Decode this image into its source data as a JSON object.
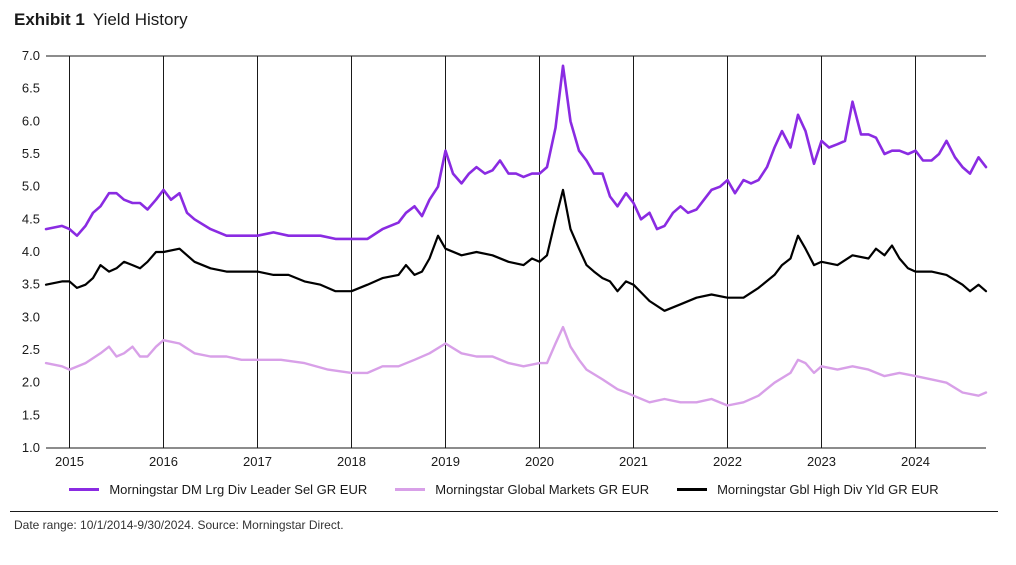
{
  "title_prefix": "Exhibit 1",
  "title_rest": "Yield History",
  "source_note": "Date range: 10/1/2014-9/30/2024. Source: Morningstar Direct.",
  "chart": {
    "type": "line",
    "background_color": "#ffffff",
    "grid_color": "#1a1a1a",
    "axis_color": "#1a1a1a",
    "y_axis": {
      "min": 1.0,
      "max": 7.0,
      "step": 0.5,
      "ticks": [
        1.0,
        1.5,
        2.0,
        2.5,
        3.0,
        3.5,
        4.0,
        4.5,
        5.0,
        5.5,
        6.0,
        6.5,
        7.0
      ],
      "label_fontsize": 13
    },
    "x_axis": {
      "min": 2014.75,
      "max": 2024.75,
      "year_lines": [
        2015,
        2016,
        2017,
        2018,
        2019,
        2020,
        2021,
        2022,
        2023,
        2024
      ],
      "label_fontsize": 13
    },
    "series": [
      {
        "name": "Morningstar DM Lrg Div Leader Sel GR EUR",
        "color": "#8a2be2",
        "line_width": 2.6,
        "points": [
          [
            2014.75,
            4.35
          ],
          [
            2014.92,
            4.4
          ],
          [
            2015.0,
            4.35
          ],
          [
            2015.08,
            4.25
          ],
          [
            2015.17,
            4.4
          ],
          [
            2015.25,
            4.6
          ],
          [
            2015.33,
            4.7
          ],
          [
            2015.42,
            4.9
          ],
          [
            2015.5,
            4.9
          ],
          [
            2015.58,
            4.8
          ],
          [
            2015.67,
            4.75
          ],
          [
            2015.75,
            4.75
          ],
          [
            2015.83,
            4.65
          ],
          [
            2015.92,
            4.8
          ],
          [
            2016.0,
            4.95
          ],
          [
            2016.08,
            4.8
          ],
          [
            2016.17,
            4.9
          ],
          [
            2016.25,
            4.6
          ],
          [
            2016.33,
            4.5
          ],
          [
            2016.5,
            4.35
          ],
          [
            2016.67,
            4.25
          ],
          [
            2016.83,
            4.25
          ],
          [
            2017.0,
            4.25
          ],
          [
            2017.17,
            4.3
          ],
          [
            2017.33,
            4.25
          ],
          [
            2017.5,
            4.25
          ],
          [
            2017.67,
            4.25
          ],
          [
            2017.83,
            4.2
          ],
          [
            2018.0,
            4.2
          ],
          [
            2018.17,
            4.2
          ],
          [
            2018.33,
            4.35
          ],
          [
            2018.5,
            4.45
          ],
          [
            2018.58,
            4.6
          ],
          [
            2018.67,
            4.7
          ],
          [
            2018.75,
            4.55
          ],
          [
            2018.83,
            4.8
          ],
          [
            2018.92,
            5.0
          ],
          [
            2019.0,
            5.55
          ],
          [
            2019.08,
            5.2
          ],
          [
            2019.17,
            5.05
          ],
          [
            2019.25,
            5.2
          ],
          [
            2019.33,
            5.3
          ],
          [
            2019.42,
            5.2
          ],
          [
            2019.5,
            5.25
          ],
          [
            2019.58,
            5.4
          ],
          [
            2019.67,
            5.2
          ],
          [
            2019.75,
            5.2
          ],
          [
            2019.83,
            5.15
          ],
          [
            2019.92,
            5.2
          ],
          [
            2020.0,
            5.2
          ],
          [
            2020.08,
            5.3
          ],
          [
            2020.17,
            5.9
          ],
          [
            2020.25,
            6.85
          ],
          [
            2020.33,
            6.0
          ],
          [
            2020.42,
            5.55
          ],
          [
            2020.5,
            5.4
          ],
          [
            2020.58,
            5.2
          ],
          [
            2020.67,
            5.2
          ],
          [
            2020.75,
            4.85
          ],
          [
            2020.83,
            4.7
          ],
          [
            2020.92,
            4.9
          ],
          [
            2021.0,
            4.75
          ],
          [
            2021.08,
            4.5
          ],
          [
            2021.17,
            4.6
          ],
          [
            2021.25,
            4.35
          ],
          [
            2021.33,
            4.4
          ],
          [
            2021.42,
            4.6
          ],
          [
            2021.5,
            4.7
          ],
          [
            2021.58,
            4.6
          ],
          [
            2021.67,
            4.65
          ],
          [
            2021.75,
            4.8
          ],
          [
            2021.83,
            4.95
          ],
          [
            2021.92,
            5.0
          ],
          [
            2022.0,
            5.1
          ],
          [
            2022.08,
            4.9
          ],
          [
            2022.17,
            5.1
          ],
          [
            2022.25,
            5.05
          ],
          [
            2022.33,
            5.1
          ],
          [
            2022.42,
            5.3
          ],
          [
            2022.5,
            5.6
          ],
          [
            2022.58,
            5.85
          ],
          [
            2022.67,
            5.6
          ],
          [
            2022.75,
            6.1
          ],
          [
            2022.83,
            5.85
          ],
          [
            2022.92,
            5.35
          ],
          [
            2023.0,
            5.7
          ],
          [
            2023.08,
            5.6
          ],
          [
            2023.17,
            5.65
          ],
          [
            2023.25,
            5.7
          ],
          [
            2023.33,
            6.3
          ],
          [
            2023.42,
            5.8
          ],
          [
            2023.5,
            5.8
          ],
          [
            2023.58,
            5.75
          ],
          [
            2023.67,
            5.5
          ],
          [
            2023.75,
            5.55
          ],
          [
            2023.83,
            5.55
          ],
          [
            2023.92,
            5.5
          ],
          [
            2024.0,
            5.55
          ],
          [
            2024.08,
            5.4
          ],
          [
            2024.17,
            5.4
          ],
          [
            2024.25,
            5.5
          ],
          [
            2024.33,
            5.7
          ],
          [
            2024.42,
            5.45
          ],
          [
            2024.5,
            5.3
          ],
          [
            2024.58,
            5.2
          ],
          [
            2024.67,
            5.45
          ],
          [
            2024.75,
            5.3
          ]
        ]
      },
      {
        "name": "Morningstar Global Markets GR EUR",
        "color": "#d8a0e8",
        "line_width": 2.4,
        "points": [
          [
            2014.75,
            2.3
          ],
          [
            2014.92,
            2.25
          ],
          [
            2015.0,
            2.2
          ],
          [
            2015.17,
            2.3
          ],
          [
            2015.33,
            2.45
          ],
          [
            2015.42,
            2.55
          ],
          [
            2015.5,
            2.4
          ],
          [
            2015.58,
            2.45
          ],
          [
            2015.67,
            2.55
          ],
          [
            2015.75,
            2.4
          ],
          [
            2015.83,
            2.4
          ],
          [
            2015.92,
            2.55
          ],
          [
            2016.0,
            2.65
          ],
          [
            2016.17,
            2.6
          ],
          [
            2016.33,
            2.45
          ],
          [
            2016.5,
            2.4
          ],
          [
            2016.67,
            2.4
          ],
          [
            2016.83,
            2.35
          ],
          [
            2017.0,
            2.35
          ],
          [
            2017.25,
            2.35
          ],
          [
            2017.5,
            2.3
          ],
          [
            2017.75,
            2.2
          ],
          [
            2018.0,
            2.15
          ],
          [
            2018.17,
            2.15
          ],
          [
            2018.33,
            2.25
          ],
          [
            2018.5,
            2.25
          ],
          [
            2018.67,
            2.35
          ],
          [
            2018.83,
            2.45
          ],
          [
            2019.0,
            2.6
          ],
          [
            2019.17,
            2.45
          ],
          [
            2019.33,
            2.4
          ],
          [
            2019.5,
            2.4
          ],
          [
            2019.67,
            2.3
          ],
          [
            2019.83,
            2.25
          ],
          [
            2020.0,
            2.3
          ],
          [
            2020.08,
            2.3
          ],
          [
            2020.17,
            2.6
          ],
          [
            2020.25,
            2.85
          ],
          [
            2020.33,
            2.55
          ],
          [
            2020.42,
            2.35
          ],
          [
            2020.5,
            2.2
          ],
          [
            2020.67,
            2.05
          ],
          [
            2020.83,
            1.9
          ],
          [
            2020.92,
            1.85
          ],
          [
            2021.0,
            1.8
          ],
          [
            2021.17,
            1.7
          ],
          [
            2021.33,
            1.75
          ],
          [
            2021.5,
            1.7
          ],
          [
            2021.67,
            1.7
          ],
          [
            2021.83,
            1.75
          ],
          [
            2022.0,
            1.65
          ],
          [
            2022.17,
            1.7
          ],
          [
            2022.33,
            1.8
          ],
          [
            2022.5,
            2.0
          ],
          [
            2022.67,
            2.15
          ],
          [
            2022.75,
            2.35
          ],
          [
            2022.83,
            2.3
          ],
          [
            2022.92,
            2.15
          ],
          [
            2023.0,
            2.25
          ],
          [
            2023.17,
            2.2
          ],
          [
            2023.33,
            2.25
          ],
          [
            2023.5,
            2.2
          ],
          [
            2023.67,
            2.1
          ],
          [
            2023.83,
            2.15
          ],
          [
            2024.0,
            2.1
          ],
          [
            2024.17,
            2.05
          ],
          [
            2024.33,
            2.0
          ],
          [
            2024.5,
            1.85
          ],
          [
            2024.67,
            1.8
          ],
          [
            2024.75,
            1.85
          ]
        ]
      },
      {
        "name": "Morningstar Gbl High Div Yld GR EUR",
        "color": "#000000",
        "line_width": 2.2,
        "points": [
          [
            2014.75,
            3.5
          ],
          [
            2014.92,
            3.55
          ],
          [
            2015.0,
            3.55
          ],
          [
            2015.08,
            3.45
          ],
          [
            2015.17,
            3.5
          ],
          [
            2015.25,
            3.6
          ],
          [
            2015.33,
            3.8
          ],
          [
            2015.42,
            3.7
          ],
          [
            2015.5,
            3.75
          ],
          [
            2015.58,
            3.85
          ],
          [
            2015.67,
            3.8
          ],
          [
            2015.75,
            3.75
          ],
          [
            2015.83,
            3.85
          ],
          [
            2015.92,
            4.0
          ],
          [
            2016.0,
            4.0
          ],
          [
            2016.17,
            4.05
          ],
          [
            2016.33,
            3.85
          ],
          [
            2016.5,
            3.75
          ],
          [
            2016.67,
            3.7
          ],
          [
            2016.83,
            3.7
          ],
          [
            2017.0,
            3.7
          ],
          [
            2017.17,
            3.65
          ],
          [
            2017.33,
            3.65
          ],
          [
            2017.5,
            3.55
          ],
          [
            2017.67,
            3.5
          ],
          [
            2017.83,
            3.4
          ],
          [
            2018.0,
            3.4
          ],
          [
            2018.17,
            3.5
          ],
          [
            2018.33,
            3.6
          ],
          [
            2018.5,
            3.65
          ],
          [
            2018.58,
            3.8
          ],
          [
            2018.67,
            3.65
          ],
          [
            2018.75,
            3.7
          ],
          [
            2018.83,
            3.9
          ],
          [
            2018.92,
            4.25
          ],
          [
            2019.0,
            4.05
          ],
          [
            2019.17,
            3.95
          ],
          [
            2019.33,
            4.0
          ],
          [
            2019.5,
            3.95
          ],
          [
            2019.67,
            3.85
          ],
          [
            2019.83,
            3.8
          ],
          [
            2019.92,
            3.9
          ],
          [
            2020.0,
            3.85
          ],
          [
            2020.08,
            3.95
          ],
          [
            2020.17,
            4.5
          ],
          [
            2020.25,
            4.95
          ],
          [
            2020.33,
            4.35
          ],
          [
            2020.42,
            4.05
          ],
          [
            2020.5,
            3.8
          ],
          [
            2020.58,
            3.7
          ],
          [
            2020.67,
            3.6
          ],
          [
            2020.75,
            3.55
          ],
          [
            2020.83,
            3.4
          ],
          [
            2020.92,
            3.55
          ],
          [
            2021.0,
            3.5
          ],
          [
            2021.17,
            3.25
          ],
          [
            2021.33,
            3.1
          ],
          [
            2021.5,
            3.2
          ],
          [
            2021.67,
            3.3
          ],
          [
            2021.83,
            3.35
          ],
          [
            2022.0,
            3.3
          ],
          [
            2022.17,
            3.3
          ],
          [
            2022.33,
            3.45
          ],
          [
            2022.5,
            3.65
          ],
          [
            2022.58,
            3.8
          ],
          [
            2022.67,
            3.9
          ],
          [
            2022.75,
            4.25
          ],
          [
            2022.83,
            4.05
          ],
          [
            2022.92,
            3.8
          ],
          [
            2023.0,
            3.85
          ],
          [
            2023.17,
            3.8
          ],
          [
            2023.33,
            3.95
          ],
          [
            2023.5,
            3.9
          ],
          [
            2023.58,
            4.05
          ],
          [
            2023.67,
            3.95
          ],
          [
            2023.75,
            4.1
          ],
          [
            2023.83,
            3.9
          ],
          [
            2023.92,
            3.75
          ],
          [
            2024.0,
            3.7
          ],
          [
            2024.17,
            3.7
          ],
          [
            2024.33,
            3.65
          ],
          [
            2024.5,
            3.5
          ],
          [
            2024.58,
            3.4
          ],
          [
            2024.67,
            3.5
          ],
          [
            2024.75,
            3.4
          ]
        ]
      }
    ]
  }
}
